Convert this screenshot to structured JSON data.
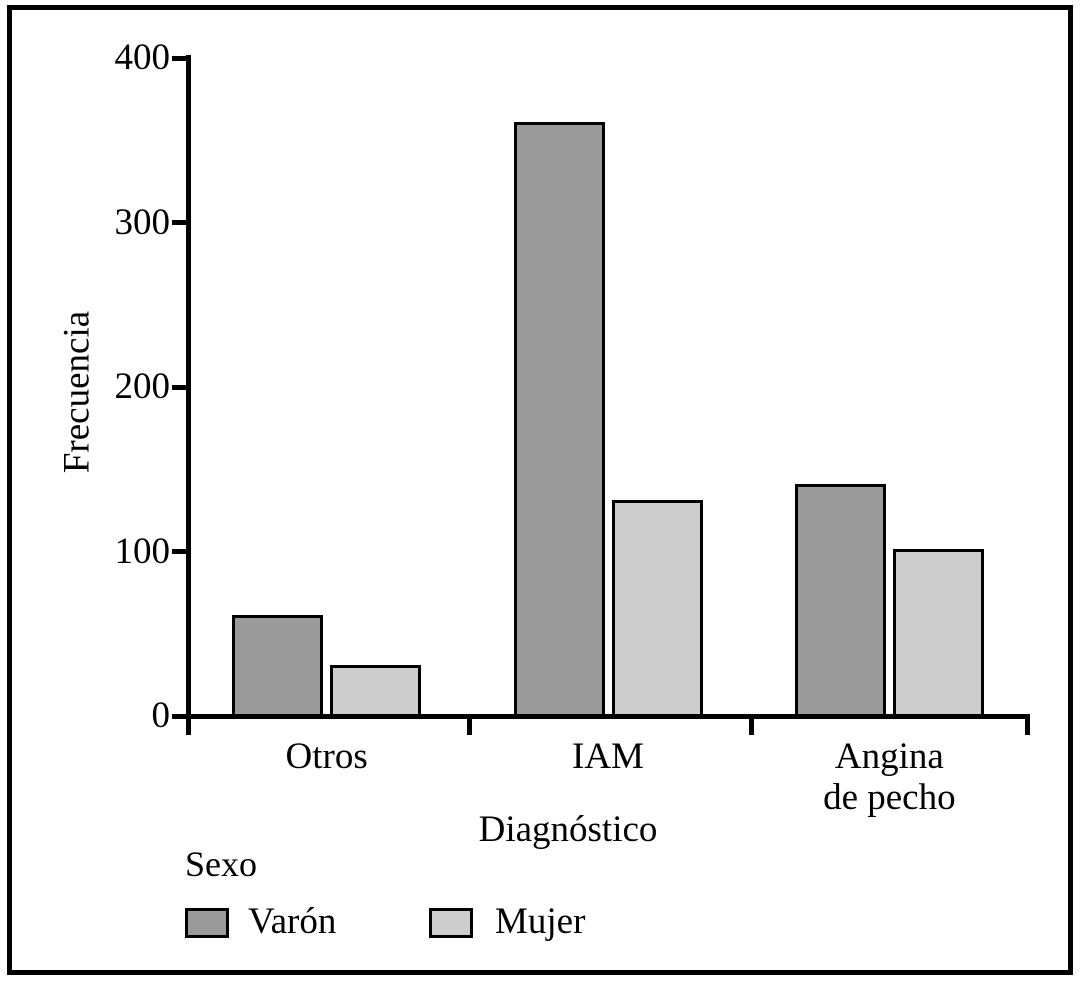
{
  "figure": {
    "kind": "grouped bar chart (scanned statistics figure)"
  },
  "chart_data": {
    "type": "bar",
    "title": "",
    "xlabel": "Diagnóstico",
    "ylabel": "Frecuencia",
    "categories": [
      "Otros",
      "IAM",
      "Angina\nde pecho"
    ],
    "series": [
      {
        "name": "Varón",
        "color": "#9a9a9a",
        "values": [
          60,
          360,
          140
        ]
      },
      {
        "name": "Mujer",
        "color": "#cdcdcd",
        "values": [
          30,
          130,
          100
        ]
      }
    ],
    "ylim": [
      0,
      400
    ],
    "y_ticks": [
      0,
      100,
      200,
      300,
      400
    ],
    "grid": false,
    "legend_title": "Sexo",
    "legend_position": "bottom-left",
    "bar_outline_color": "#000000"
  }
}
